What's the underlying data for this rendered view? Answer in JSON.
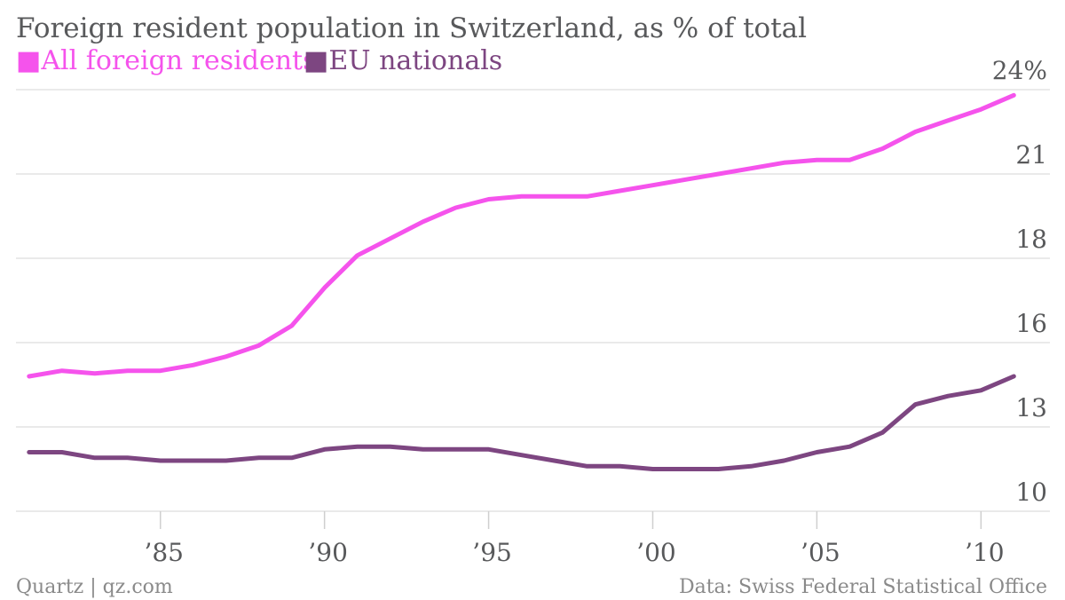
{
  "chart_data": {
    "type": "line",
    "title": "Foreign resident population in Switzerland, as % of total",
    "legend_position": "top-left",
    "x": [
      1981,
      1982,
      1983,
      1984,
      1985,
      1986,
      1987,
      1988,
      1989,
      1990,
      1991,
      1992,
      1993,
      1994,
      1995,
      1996,
      1997,
      1998,
      1999,
      2000,
      2001,
      2002,
      2003,
      2004,
      2005,
      2006,
      2007,
      2008,
      2009,
      2010,
      2011
    ],
    "x_ticks": [
      {
        "value": 1985,
        "label": "’85"
      },
      {
        "value": 1990,
        "label": "’90"
      },
      {
        "value": 1995,
        "label": "’95"
      },
      {
        "value": 2000,
        "label": "’00"
      },
      {
        "value": 2005,
        "label": "’05"
      },
      {
        "value": 2010,
        "label": "’10"
      }
    ],
    "xlim": [
      1980.6,
      2012.1
    ],
    "ylim": [
      10,
      25
    ],
    "y_ticks": [
      {
        "value": 10,
        "label": "10"
      },
      {
        "value": 13,
        "label": "13"
      },
      {
        "value": 16,
        "label": "16"
      },
      {
        "value": 18,
        "label": "18"
      },
      {
        "value": 21,
        "label": "21"
      },
      {
        "value": 24,
        "label": "24%"
      }
    ],
    "grid": true,
    "series": [
      {
        "name": "All foreign residents",
        "color": "#f553ec",
        "values": [
          14.8,
          15.0,
          14.9,
          15.0,
          15.0,
          15.2,
          15.5,
          15.9,
          16.4,
          17.3,
          18.1,
          18.7,
          19.3,
          19.8,
          20.1,
          20.2,
          20.2,
          20.2,
          20.4,
          20.6,
          20.8,
          21.0,
          21.2,
          21.4,
          21.5,
          21.5,
          21.9,
          22.5,
          22.9,
          23.3,
          23.8
        ]
      },
      {
        "name": "EU nationals",
        "color": "#7d4681",
        "values": [
          12.1,
          12.1,
          11.9,
          11.9,
          11.8,
          11.8,
          11.8,
          11.9,
          11.9,
          12.2,
          12.3,
          12.3,
          12.2,
          12.2,
          12.2,
          12.0,
          11.8,
          11.6,
          11.6,
          11.5,
          11.5,
          11.5,
          11.6,
          11.8,
          12.1,
          12.3,
          12.8,
          13.8,
          14.1,
          14.3,
          14.8
        ]
      }
    ]
  },
  "footer": {
    "source_left": "Quartz | qz.com",
    "source_right": "Data: Swiss Federal Statistical Office"
  },
  "legend": {
    "marker": "■"
  }
}
